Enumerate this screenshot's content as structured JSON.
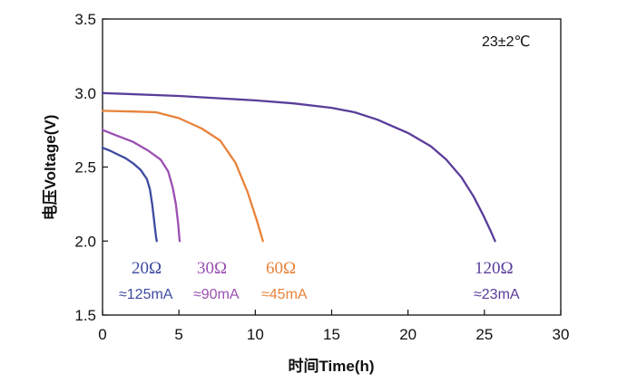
{
  "chart_data": {
    "type": "line",
    "title": "",
    "xlabel": "时间Time(h)",
    "ylabel": "电压Voltage(V)",
    "xlim": [
      0,
      30
    ],
    "ylim": [
      1.5,
      3.5
    ],
    "xticks": [
      "0",
      "5",
      "10",
      "15",
      "20",
      "25",
      "30"
    ],
    "yticks": [
      "1.5",
      "2.0",
      "2.5",
      "3.0",
      "3.5"
    ],
    "grid": false,
    "temperature_label": "23±2℃",
    "series": [
      {
        "name": "20Ω",
        "current": "≈125mA",
        "color": "#3d4ba0",
        "x": [
          0,
          0.5,
          1.0,
          1.5,
          2.0,
          2.5,
          2.9,
          3.1,
          3.25,
          3.4,
          3.5,
          3.55
        ],
        "y": [
          2.63,
          2.61,
          2.585,
          2.56,
          2.525,
          2.48,
          2.42,
          2.35,
          2.25,
          2.12,
          2.03,
          2.0
        ]
      },
      {
        "name": "30Ω",
        "current": "≈90mA",
        "color": "#9b4fb3",
        "x": [
          0,
          1.0,
          2.0,
          3.0,
          3.8,
          4.3,
          4.6,
          4.8,
          4.95,
          5.05
        ],
        "y": [
          2.75,
          2.71,
          2.67,
          2.61,
          2.55,
          2.47,
          2.36,
          2.25,
          2.12,
          2.0
        ]
      },
      {
        "name": "60Ω",
        "current": "≈45mA",
        "color": "#e8823a",
        "x": [
          0,
          2.0,
          3.5,
          5.0,
          6.5,
          7.7,
          8.7,
          9.5,
          10.1,
          10.5
        ],
        "y": [
          2.88,
          2.875,
          2.87,
          2.83,
          2.76,
          2.68,
          2.53,
          2.33,
          2.14,
          2.0
        ]
      },
      {
        "name": "120Ω",
        "current": "≈23mA",
        "color": "#5a3d9a",
        "x": [
          0,
          5.0,
          10.0,
          12.5,
          15.0,
          16.5,
          18.0,
          20.0,
          21.5,
          22.5,
          23.5,
          24.3,
          24.9,
          25.4,
          25.7
        ],
        "y": [
          3.0,
          2.98,
          2.95,
          2.93,
          2.9,
          2.87,
          2.82,
          2.73,
          2.64,
          2.55,
          2.43,
          2.3,
          2.18,
          2.07,
          2.0
        ]
      }
    ]
  }
}
